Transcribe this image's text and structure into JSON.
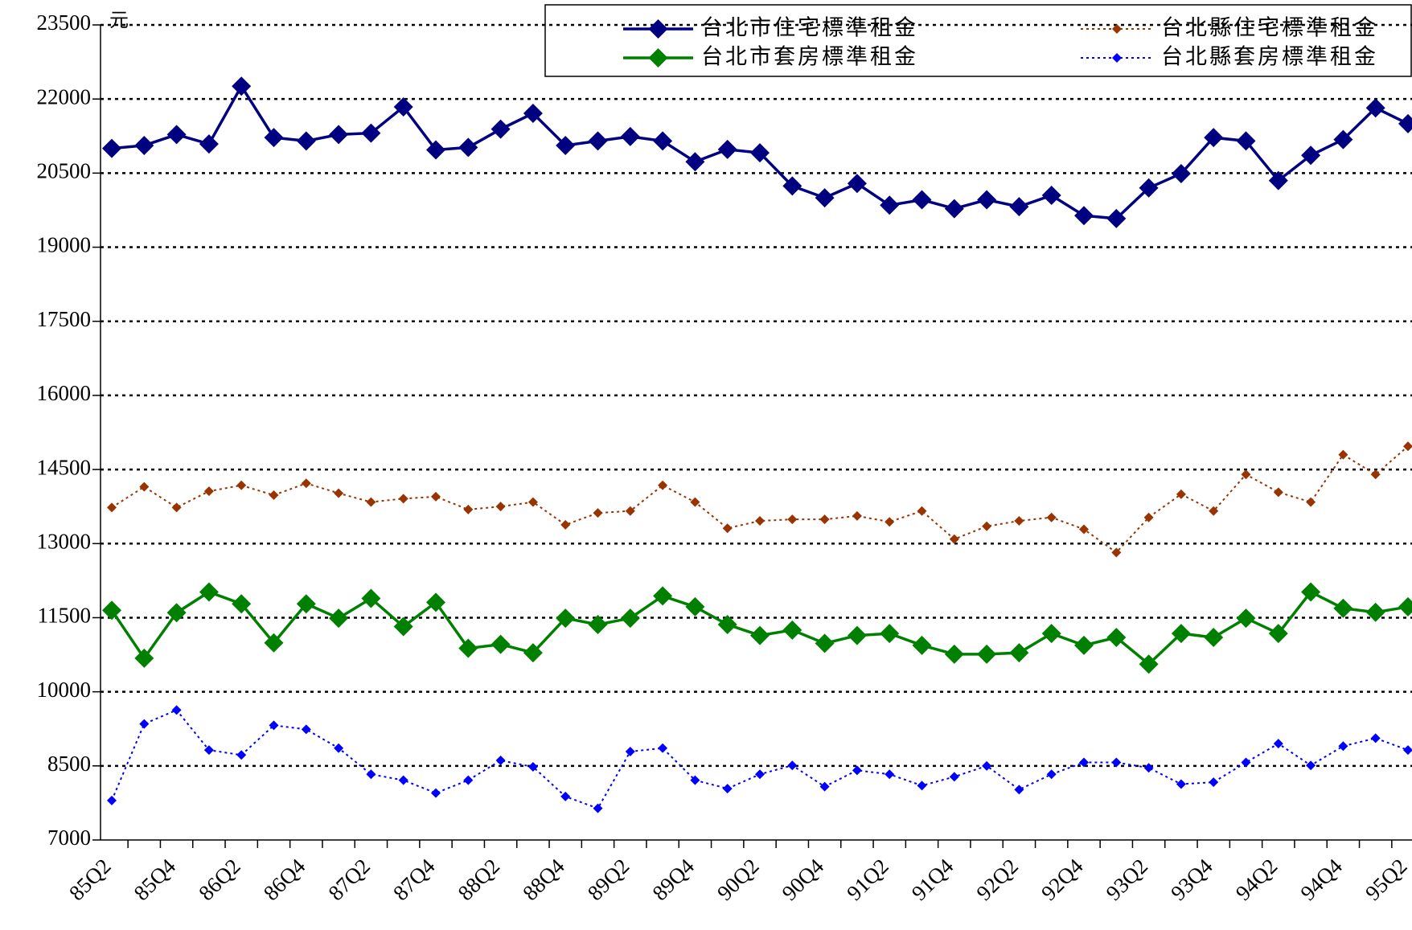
{
  "chart_data": {
    "type": "line",
    "y_label": "元",
    "categories": [
      "85Q2",
      null,
      "85Q4",
      null,
      "86Q2",
      null,
      "86Q4",
      null,
      "87Q2",
      null,
      "87Q4",
      null,
      "88Q2",
      null,
      "88Q4",
      null,
      "89Q2",
      null,
      "89Q4",
      null,
      "90Q2",
      null,
      "90Q4",
      null,
      "91Q2",
      null,
      "91Q4",
      null,
      "92Q2",
      null,
      "92Q4",
      null,
      "93Q2",
      null,
      "93Q4",
      null,
      "94Q2",
      null,
      "94Q4",
      null,
      "95Q2"
    ],
    "series": [
      {
        "name": "台北市住宅標準租金",
        "color": "#000080",
        "style": "solid",
        "values": [
          21000,
          21060,
          21280,
          21090,
          22260,
          21220,
          21150,
          21280,
          21310,
          21840,
          20970,
          21020,
          21390,
          21710,
          21060,
          21150,
          21240,
          21150,
          20730,
          20980,
          20910,
          20240,
          20000,
          20290,
          19850,
          19960,
          19780,
          19960,
          19820,
          20050,
          19640,
          19580,
          20200,
          20490,
          21220,
          21150,
          20350,
          20860,
          21180,
          21820,
          21500
        ]
      },
      {
        "name": "台北縣住宅標準租金",
        "color": "#993300",
        "style": "dotted",
        "values": [
          13730,
          14150,
          13730,
          14060,
          14180,
          13980,
          14220,
          14020,
          13840,
          13910,
          13950,
          13690,
          13750,
          13840,
          13380,
          13620,
          13660,
          14180,
          13840,
          13310,
          13460,
          13490,
          13490,
          13560,
          13440,
          13660,
          13090,
          13350,
          13460,
          13530,
          13290,
          12820,
          13530,
          14000,
          13660,
          14400,
          14040,
          13840,
          14800,
          14400,
          14970
        ]
      },
      {
        "name": "台北市套房標準租金",
        "color": "#008000",
        "style": "solid",
        "values": [
          11650,
          10680,
          11600,
          12020,
          11780,
          10990,
          11780,
          11490,
          11890,
          11320,
          11810,
          10880,
          10960,
          10790,
          11490,
          11360,
          11490,
          11940,
          11720,
          11360,
          11140,
          11250,
          10980,
          11140,
          11180,
          10940,
          10760,
          10760,
          10790,
          11180,
          10940,
          11100,
          10560,
          11180,
          11100,
          11490,
          11180,
          12020,
          11690,
          11610,
          11720
        ]
      },
      {
        "name": "台北縣套房標準租金",
        "color": "#0000ff",
        "style": "dotted",
        "values": [
          7800,
          9350,
          9630,
          8820,
          8720,
          9320,
          9240,
          8860,
          8330,
          8210,
          7950,
          8210,
          8610,
          8480,
          7880,
          7640,
          8790,
          8860,
          8210,
          8040,
          8330,
          8510,
          8080,
          8410,
          8330,
          8100,
          8280,
          8500,
          8020,
          8330,
          8570,
          8570,
          8460,
          8130,
          8170,
          8570,
          8950,
          8510,
          8900,
          9060,
          8820
        ]
      }
    ],
    "ylim": [
      7000,
      23500
    ],
    "yticks": [
      7000,
      8500,
      10000,
      11500,
      13000,
      14500,
      16000,
      17500,
      19000,
      20500,
      22000,
      23500
    ],
    "grid": true
  }
}
